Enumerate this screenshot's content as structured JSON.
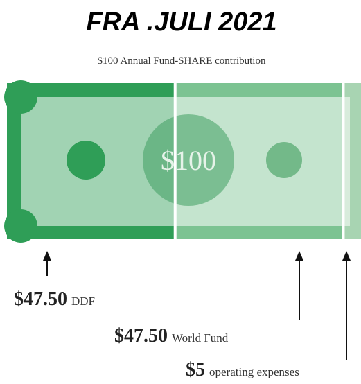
{
  "title": "FRA .JULI 2021",
  "subtitle": "$100 Annual Fund-SHARE contribution",
  "bill_label": "$100",
  "segments": {
    "names": [
      "DDF",
      "World Fund",
      "operating expenses"
    ],
    "values": [
      47.5,
      47.5,
      5
    ],
    "value_labels": [
      "$47.50",
      "$47.50",
      "$5"
    ],
    "colors": [
      "#2f9e57",
      "#7cc392",
      "#a8d4b2"
    ]
  }
}
